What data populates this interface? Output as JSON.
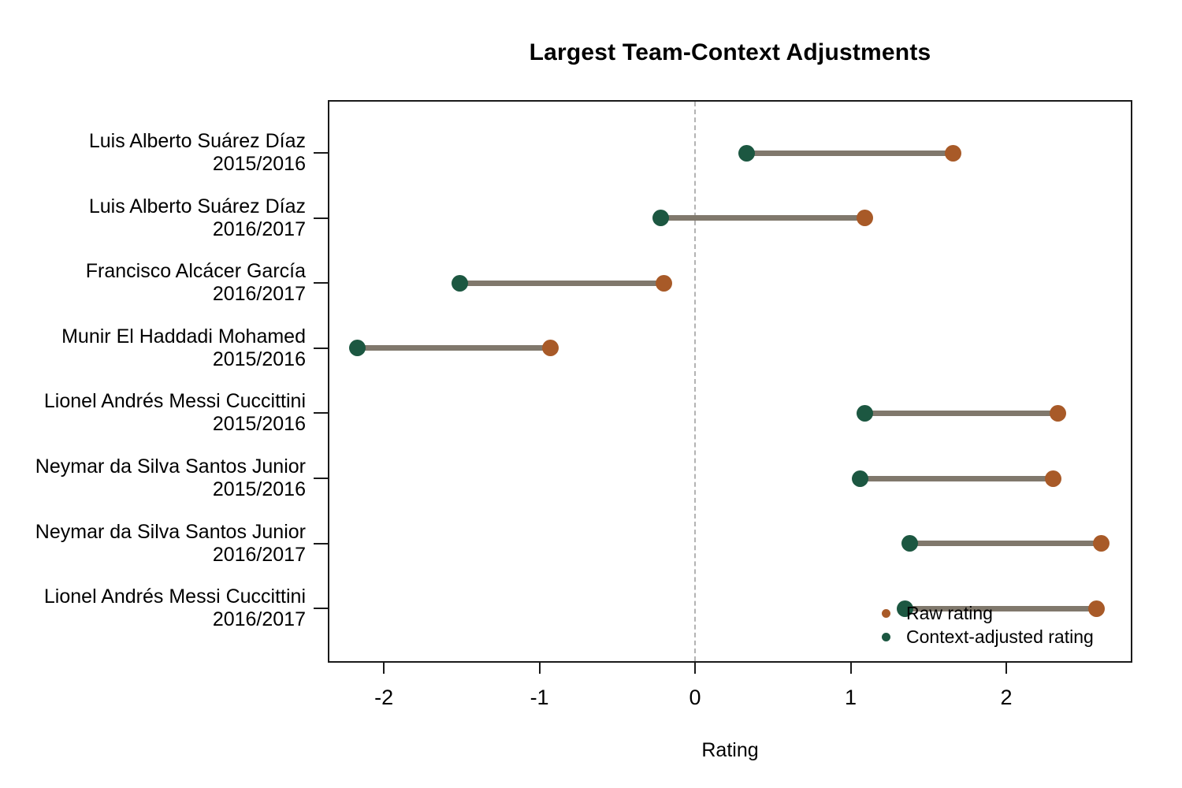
{
  "title": "Largest Team-Context Adjustments",
  "chart_data": {
    "type": "dumbbell",
    "title": "Largest Team-Context Adjustments",
    "xlabel": "Rating",
    "xlim": [
      -2.36,
      2.81
    ],
    "xticks": [
      "-2",
      "-1",
      "0",
      "1",
      "2"
    ],
    "xtick_values": [
      -2,
      -1,
      0,
      1,
      2
    ],
    "zero_reference_line": 0,
    "grid": "off",
    "legend_position": "bottom-right-inside",
    "rows": [
      {
        "player": "Luis Alberto Suárez Díaz",
        "season": "2015/2016",
        "raw": 1.66,
        "adjusted": 0.33
      },
      {
        "player": "Luis Alberto Suárez Díaz",
        "season": "2016/2017",
        "raw": 1.09,
        "adjusted": -0.22
      },
      {
        "player": "Francisco Alcácer García",
        "season": "2016/2017",
        "raw": -0.2,
        "adjusted": -1.51
      },
      {
        "player": "Munir El Haddadi Mohamed",
        "season": "2015/2016",
        "raw": -0.93,
        "adjusted": -2.17
      },
      {
        "player": "Lionel Andrés Messi Cuccittini",
        "season": "2015/2016",
        "raw": 2.33,
        "adjusted": 1.09
      },
      {
        "player": "Neymar da Silva Santos Junior",
        "season": "2015/2016",
        "raw": 2.3,
        "adjusted": 1.06
      },
      {
        "player": "Neymar da Silva Santos Junior",
        "season": "2016/2017",
        "raw": 2.61,
        "adjusted": 1.38
      },
      {
        "player": "Lionel Andrés Messi Cuccittini",
        "season": "2016/2017",
        "raw": 2.58,
        "adjusted": 1.35
      }
    ],
    "legend": [
      {
        "label": "Raw rating",
        "series": "raw"
      },
      {
        "label": "Context-adjusted rating",
        "series": "adjusted"
      }
    ],
    "colors": {
      "raw": "#a85a28",
      "adjusted": "#1c5741",
      "connector": "#80786c",
      "zero_line": "#b3b3b3",
      "axis": "#1a1a1a",
      "text": "#000000"
    }
  }
}
